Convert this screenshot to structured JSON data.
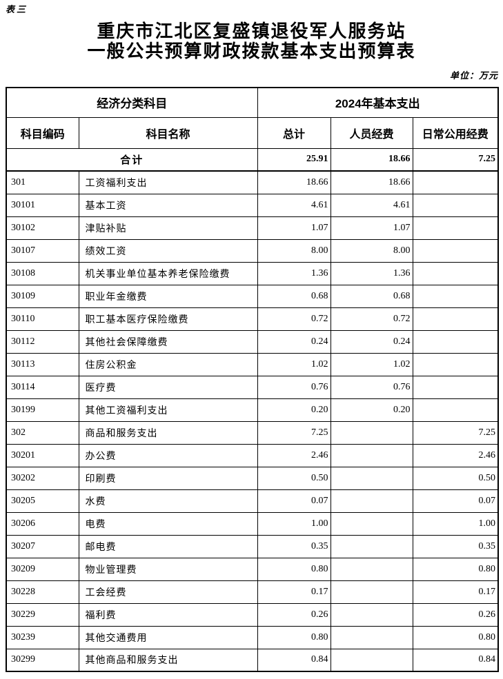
{
  "page": {
    "tag": "表三",
    "title_line1": "重庆市江北区复盛镇退役军人服务站",
    "title_line2": "一般公共预算财政拨款基本支出预算表",
    "unit_note": "单位：万元"
  },
  "table": {
    "header_group": {
      "left": "经济分类科目",
      "right": "2024年基本支出"
    },
    "columns": [
      "科目编码",
      "科目名称",
      "总计",
      "人员经费",
      "日常公用经费"
    ],
    "total_row": {
      "label": "合计",
      "total": "25.91",
      "personnel": "18.66",
      "daily": "7.25"
    },
    "rows": [
      {
        "code": "301",
        "name": "工资福利支出",
        "total": "18.66",
        "personnel": "18.66",
        "daily": ""
      },
      {
        "code": "30101",
        "name": "基本工资",
        "total": "4.61",
        "personnel": "4.61",
        "daily": ""
      },
      {
        "code": "30102",
        "name": "津贴补贴",
        "total": "1.07",
        "personnel": "1.07",
        "daily": ""
      },
      {
        "code": "30107",
        "name": "绩效工资",
        "total": "8.00",
        "personnel": "8.00",
        "daily": ""
      },
      {
        "code": "30108",
        "name": "机关事业单位基本养老保险缴费",
        "total": "1.36",
        "personnel": "1.36",
        "daily": ""
      },
      {
        "code": "30109",
        "name": "职业年金缴费",
        "total": "0.68",
        "personnel": "0.68",
        "daily": ""
      },
      {
        "code": "30110",
        "name": "职工基本医疗保险缴费",
        "total": "0.72",
        "personnel": "0.72",
        "daily": ""
      },
      {
        "code": "30112",
        "name": "其他社会保障缴费",
        "total": "0.24",
        "personnel": "0.24",
        "daily": ""
      },
      {
        "code": "30113",
        "name": "住房公积金",
        "total": "1.02",
        "personnel": "1.02",
        "daily": ""
      },
      {
        "code": "30114",
        "name": "医疗费",
        "total": "0.76",
        "personnel": "0.76",
        "daily": ""
      },
      {
        "code": "30199",
        "name": "其他工资福利支出",
        "total": "0.20",
        "personnel": "0.20",
        "daily": ""
      },
      {
        "code": "302",
        "name": "商品和服务支出",
        "total": "7.25",
        "personnel": "",
        "daily": "7.25"
      },
      {
        "code": "30201",
        "name": "办公费",
        "total": "2.46",
        "personnel": "",
        "daily": "2.46"
      },
      {
        "code": "30202",
        "name": "印刷费",
        "total": "0.50",
        "personnel": "",
        "daily": "0.50"
      },
      {
        "code": "30205",
        "name": "水费",
        "total": "0.07",
        "personnel": "",
        "daily": "0.07"
      },
      {
        "code": "30206",
        "name": "电费",
        "total": "1.00",
        "personnel": "",
        "daily": "1.00"
      },
      {
        "code": "30207",
        "name": "邮电费",
        "total": "0.35",
        "personnel": "",
        "daily": "0.35"
      },
      {
        "code": "30209",
        "name": "物业管理费",
        "total": "0.80",
        "personnel": "",
        "daily": "0.80"
      },
      {
        "code": "30228",
        "name": "工会经费",
        "total": "0.17",
        "personnel": "",
        "daily": "0.17"
      },
      {
        "code": "30229",
        "name": "福利费",
        "total": "0.26",
        "personnel": "",
        "daily": "0.26"
      },
      {
        "code": "30239",
        "name": "其他交通费用",
        "total": "0.80",
        "personnel": "",
        "daily": "0.80"
      },
      {
        "code": "30299",
        "name": "其他商品和服务支出",
        "total": "0.84",
        "personnel": "",
        "daily": "0.84"
      }
    ]
  }
}
